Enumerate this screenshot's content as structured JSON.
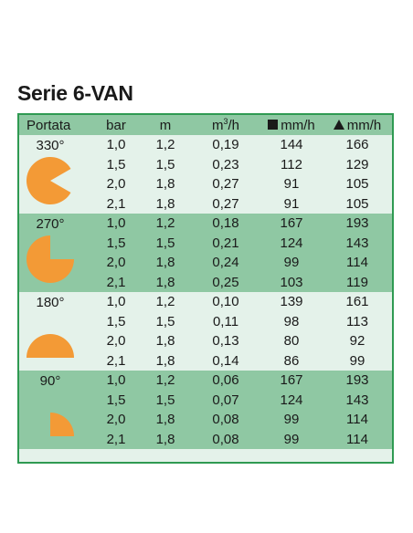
{
  "title": "Serie 6-VAN",
  "header": {
    "portata": "Portata",
    "bar": "bar",
    "m": "m",
    "m3h_base": "m",
    "m3h_sup": "3",
    "m3h_tail": "/h",
    "square_mmh": "mm/h",
    "triangle_mmh": "mm/h"
  },
  "colors": {
    "border": "#2f9a52",
    "dark_band": "#8fc8a3",
    "light_band": "#e4f2ea",
    "icon": "#f39a36"
  },
  "groups": [
    {
      "angle": "330°",
      "icon": "arc-330-icon",
      "rows": [
        [
          "1,0",
          "1,2",
          "0,19",
          "144",
          "166"
        ],
        [
          "1,5",
          "1,5",
          "0,23",
          "112",
          "129"
        ],
        [
          "2,0",
          "1,8",
          "0,27",
          "91",
          "105"
        ],
        [
          "2,1",
          "1,8",
          "0,27",
          "91",
          "105"
        ]
      ]
    },
    {
      "angle": "270°",
      "icon": "arc-270-icon",
      "rows": [
        [
          "1,0",
          "1,2",
          "0,18",
          "167",
          "193"
        ],
        [
          "1,5",
          "1,5",
          "0,21",
          "124",
          "143"
        ],
        [
          "2,0",
          "1,8",
          "0,24",
          "99",
          "114"
        ],
        [
          "2,1",
          "1,8",
          "0,25",
          "103",
          "119"
        ]
      ]
    },
    {
      "angle": "180°",
      "icon": "arc-180-icon",
      "rows": [
        [
          "1,0",
          "1,2",
          "0,10",
          "139",
          "161"
        ],
        [
          "1,5",
          "1,5",
          "0,11",
          "98",
          "113"
        ],
        [
          "2,0",
          "1,8",
          "0,13",
          "80",
          "92"
        ],
        [
          "2,1",
          "1,8",
          "0,14",
          "86",
          "99"
        ]
      ]
    },
    {
      "angle": "90°",
      "icon": "arc-90-icon",
      "rows": [
        [
          "1,0",
          "1,2",
          "0,06",
          "167",
          "193"
        ],
        [
          "1,5",
          "1,5",
          "0,07",
          "124",
          "143"
        ],
        [
          "2,0",
          "1,8",
          "0,08",
          "99",
          "114"
        ],
        [
          "2,1",
          "1,8",
          "0,08",
          "99",
          "114"
        ]
      ]
    }
  ]
}
